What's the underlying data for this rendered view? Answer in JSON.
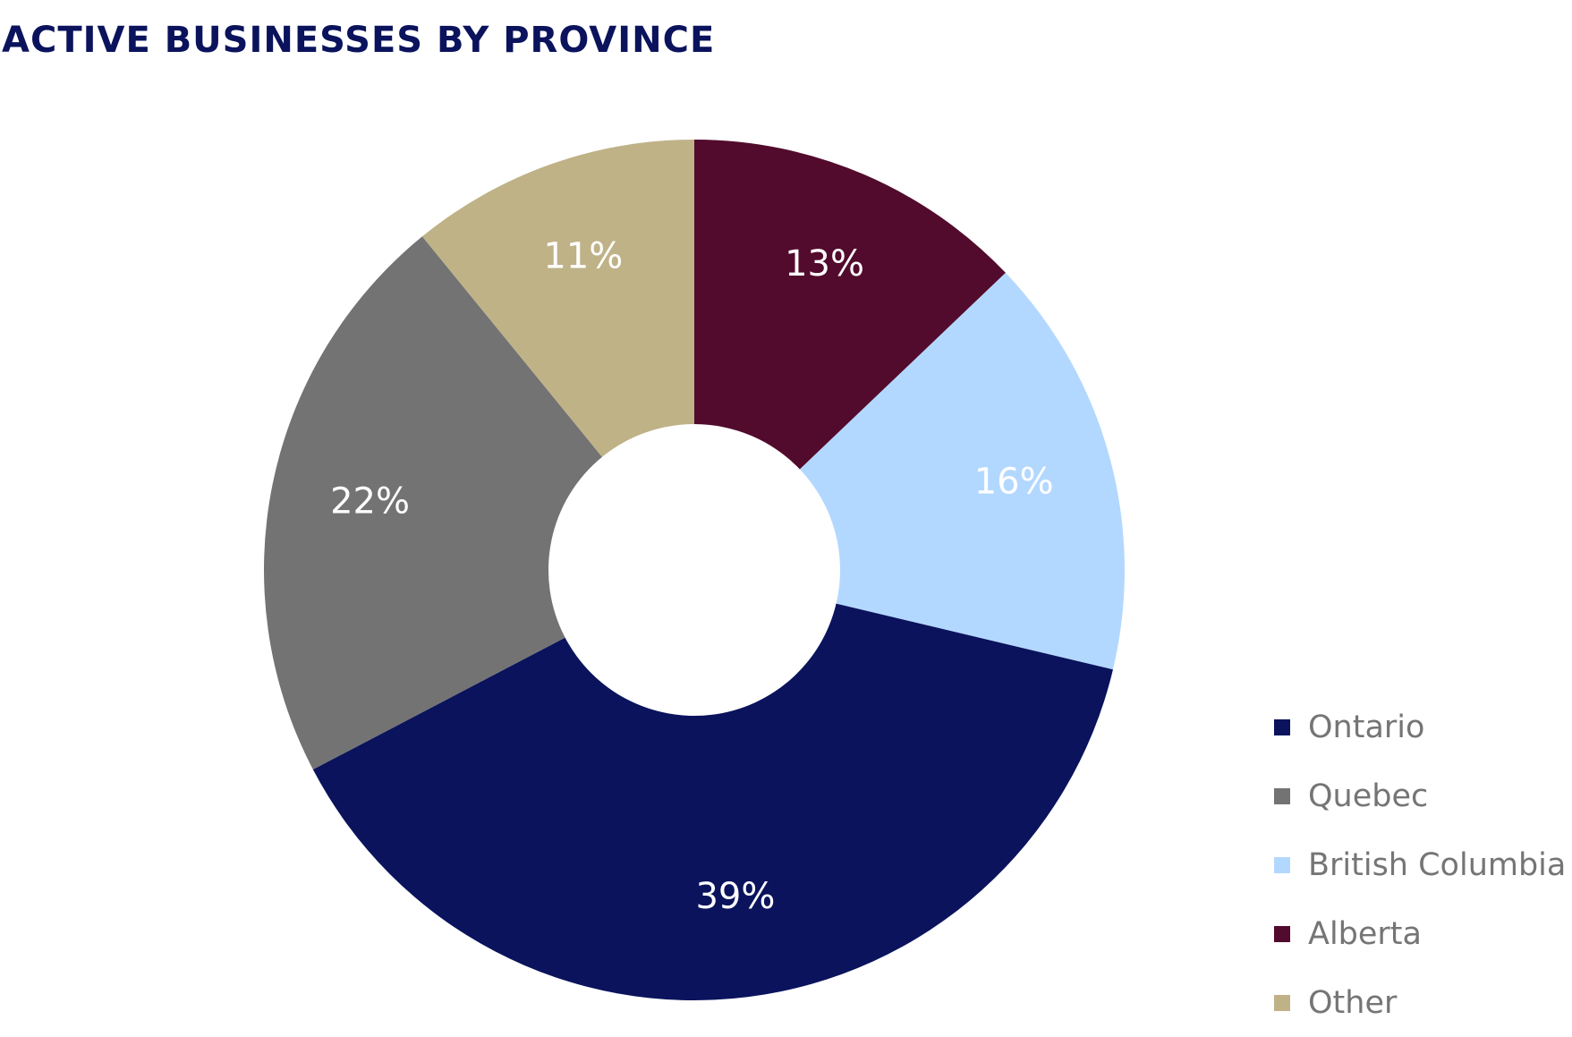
{
  "chart_data": {
    "type": "pie",
    "title": "ACTIVE BUSINESSES BY PROVINCE",
    "donut": true,
    "legend_position": "bottom-right",
    "slices": [
      {
        "name": "Alberta",
        "value": 13,
        "label": "13%",
        "color": "#520b2c"
      },
      {
        "name": "British Columbia",
        "value": 16,
        "label": "16%",
        "color": "#b3d8ff"
      },
      {
        "name": "Ontario",
        "value": 39,
        "label": "39%",
        "color": "#0a135c"
      },
      {
        "name": "Quebec",
        "value": 22,
        "label": "22%",
        "color": "#737373"
      },
      {
        "name": "Other",
        "value": 11,
        "label": "11%",
        "color": "#bfb287"
      }
    ],
    "legend": [
      {
        "label": "Ontario",
        "color": "#0a135c"
      },
      {
        "label": "Quebec",
        "color": "#737373"
      },
      {
        "label": "British Columbia",
        "color": "#b3d8ff"
      },
      {
        "label": "Alberta",
        "color": "#520b2c"
      },
      {
        "label": "Other",
        "color": "#bfb287"
      }
    ]
  }
}
